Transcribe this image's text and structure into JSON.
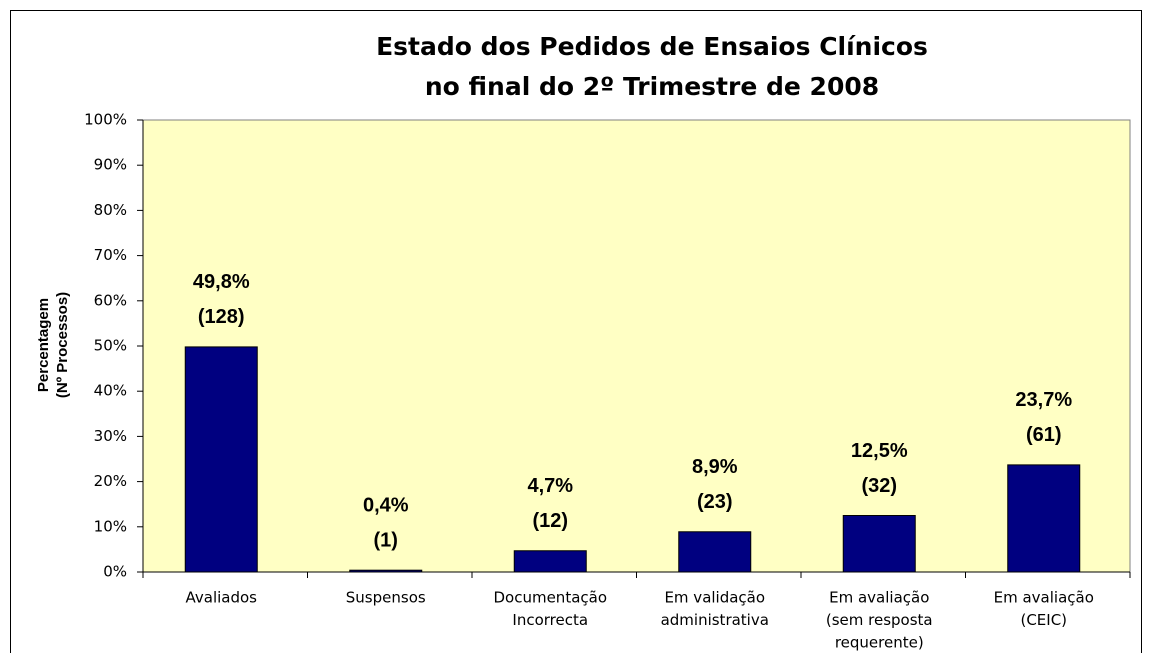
{
  "chart_data": {
    "type": "bar",
    "title": [
      "Estado dos Pedidos de Ensaios Clínicos",
      "no final do 2º Trimestre de 2008"
    ],
    "y_label": [
      "Percentagem",
      "(Nº Processos)"
    ],
    "categories": [
      [
        "Avaliados"
      ],
      [
        "Suspensos"
      ],
      [
        "Documentação",
        "Incorrecta"
      ],
      [
        "Em validação",
        "administrativa"
      ],
      [
        "Em avaliação",
        "(sem resposta",
        "requerente)"
      ],
      [
        "Em avaliação",
        "(CEIC)"
      ]
    ],
    "values": [
      49.8,
      0.4,
      4.7,
      8.9,
      12.5,
      23.7
    ],
    "value_labels": [
      "49,8%",
      "0,4%",
      "4,7%",
      "8,9%",
      "12,5%",
      "23,7%"
    ],
    "count_labels": [
      "(128)",
      "(1)",
      "(12)",
      "(23)",
      "(32)",
      "(61)"
    ],
    "color": "#000080",
    "background": "#ffffc4",
    "ylim": [
      0,
      100
    ],
    "yticks": [
      {
        "value": 0,
        "label": "0%"
      },
      {
        "value": 10,
        "label": "10%"
      },
      {
        "value": 20,
        "label": "20%"
      },
      {
        "value": 30,
        "label": "30%"
      },
      {
        "value": 40,
        "label": "40%"
      },
      {
        "value": 50,
        "label": "50%"
      },
      {
        "value": 60,
        "label": "60%"
      },
      {
        "value": 70,
        "label": "70%"
      },
      {
        "value": 80,
        "label": "80%"
      },
      {
        "value": 90,
        "label": "90%"
      },
      {
        "value": 100,
        "label": "100%"
      }
    ],
    "grid": false
  }
}
